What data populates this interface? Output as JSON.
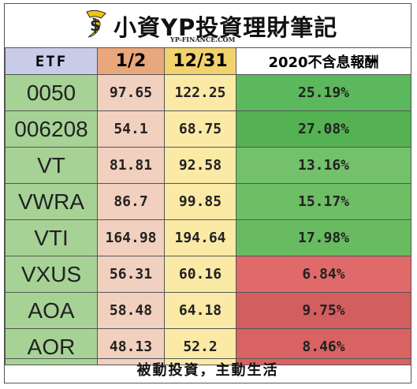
{
  "header": {
    "brand": "小資YP投資理財筆記",
    "domain": "YP-FINANCE.COM"
  },
  "table": {
    "columns": [
      "ETF",
      "1/2",
      "12/31",
      "2020不含息報酬"
    ],
    "rows": [
      {
        "ticker": "0050",
        "price_start": "97.65",
        "price_end": "122.25",
        "return": "25.19%",
        "color": "#5cb85c"
      },
      {
        "ticker": "006208",
        "price_start": "54.1",
        "price_end": "68.75",
        "return": "27.08%",
        "color": "#54b253"
      },
      {
        "ticker": "VT",
        "price_start": "81.81",
        "price_end": "92.58",
        "return": "13.16%",
        "color": "#74c16c"
      },
      {
        "ticker": "VWRA",
        "price_start": "86.7",
        "price_end": "99.85",
        "return": "15.17%",
        "color": "#6ebe66"
      },
      {
        "ticker": "VTI",
        "price_start": "164.98",
        "price_end": "194.64",
        "return": "17.98%",
        "color": "#68bb61"
      },
      {
        "ticker": "VXUS",
        "price_start": "56.31",
        "price_end": "60.16",
        "return": "6.84%",
        "color": "#e06a6a"
      },
      {
        "ticker": "AOA",
        "price_start": "58.48",
        "price_end": "64.18",
        "return": "9.75%",
        "color": "#d35e5e"
      },
      {
        "ticker": "AOR",
        "price_start": "48.13",
        "price_end": "52.2",
        "return": "8.46%",
        "color": "#d96262"
      }
    ]
  },
  "footer": {
    "slogan": "被動投資，主動生活"
  },
  "icons": {
    "logo": "money-bag-logo-icon"
  },
  "colors": {
    "etf_header": "#c8cce8",
    "start_header": "#e9a77c",
    "end_header": "#f2d26d",
    "ticker_bg": "#a6d395"
  }
}
